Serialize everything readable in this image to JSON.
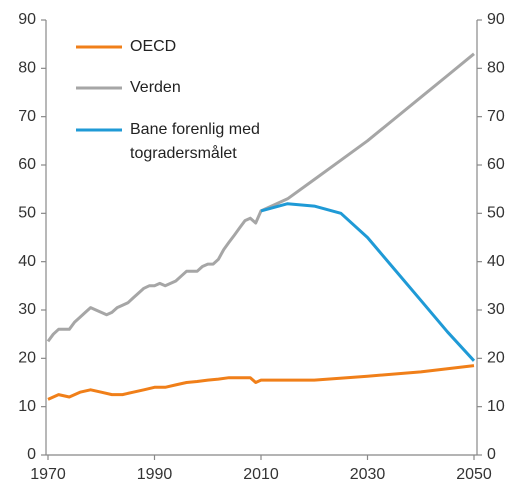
{
  "chart_data": {
    "type": "line",
    "xlim": [
      1970,
      2050
    ],
    "xticks": [
      1970,
      1990,
      2010,
      2030,
      2050
    ],
    "ylim": [
      0,
      90
    ],
    "yticks": [
      0,
      10,
      20,
      30,
      40,
      50,
      60,
      70,
      80,
      90
    ],
    "y2lim": [
      0,
      90
    ],
    "y2ticks": [
      0,
      10,
      20,
      30,
      40,
      50,
      60,
      70,
      80,
      90
    ],
    "grid": false,
    "legend": "upper left",
    "series": [
      {
        "name": "OECD",
        "color": "#f07f19",
        "x": [
          1970,
          1972,
          1974,
          1976,
          1978,
          1980,
          1982,
          1984,
          1986,
          1988,
          1990,
          1992,
          1994,
          1996,
          1998,
          2000,
          2002,
          2004,
          2006,
          2008,
          2009,
          2010,
          2020,
          2030,
          2040,
          2050
        ],
        "values": [
          11.5,
          12.5,
          12,
          13,
          13.5,
          13,
          12.5,
          12.5,
          13,
          13.5,
          14,
          14,
          14.5,
          15,
          15.2,
          15.5,
          15.7,
          16,
          16,
          16,
          15,
          15.5,
          15.5,
          16.3,
          17.2,
          18.5
        ]
      },
      {
        "name": "Verden",
        "color": "#a6a6a6",
        "x": [
          1970,
          1971,
          1972,
          1973,
          1974,
          1975,
          1976,
          1977,
          1978,
          1979,
          1980,
          1981,
          1982,
          1983,
          1984,
          1985,
          1986,
          1987,
          1988,
          1989,
          1990,
          1991,
          1992,
          1993,
          1994,
          1995,
          1996,
          1997,
          1998,
          1999,
          2000,
          2001,
          2002,
          2003,
          2004,
          2005,
          2006,
          2007,
          2008,
          2009,
          2010,
          2015,
          2020,
          2025,
          2030,
          2035,
          2040,
          2045,
          2050
        ],
        "values": [
          23.5,
          25,
          26,
          26,
          26,
          27.5,
          28.5,
          29.5,
          30.5,
          30,
          29.5,
          29,
          29.5,
          30.5,
          31,
          31.5,
          32.5,
          33.5,
          34.5,
          35,
          35,
          35.5,
          35,
          35.5,
          36,
          37,
          38,
          38,
          38,
          39,
          39.5,
          39.5,
          40.5,
          42.5,
          44,
          45.5,
          47,
          48.5,
          49,
          48,
          50.5,
          53,
          57,
          61,
          65,
          69.5,
          74,
          78.5,
          83
        ]
      },
      {
        "name": "Bane forenlig med\ntogradersmålet",
        "color": "#1f9ad6",
        "x": [
          2010,
          2015,
          2020,
          2025,
          2030,
          2035,
          2040,
          2045,
          2050
        ],
        "values": [
          50.5,
          52,
          51.5,
          50,
          45,
          38.5,
          32,
          25.5,
          19.5
        ]
      }
    ]
  }
}
